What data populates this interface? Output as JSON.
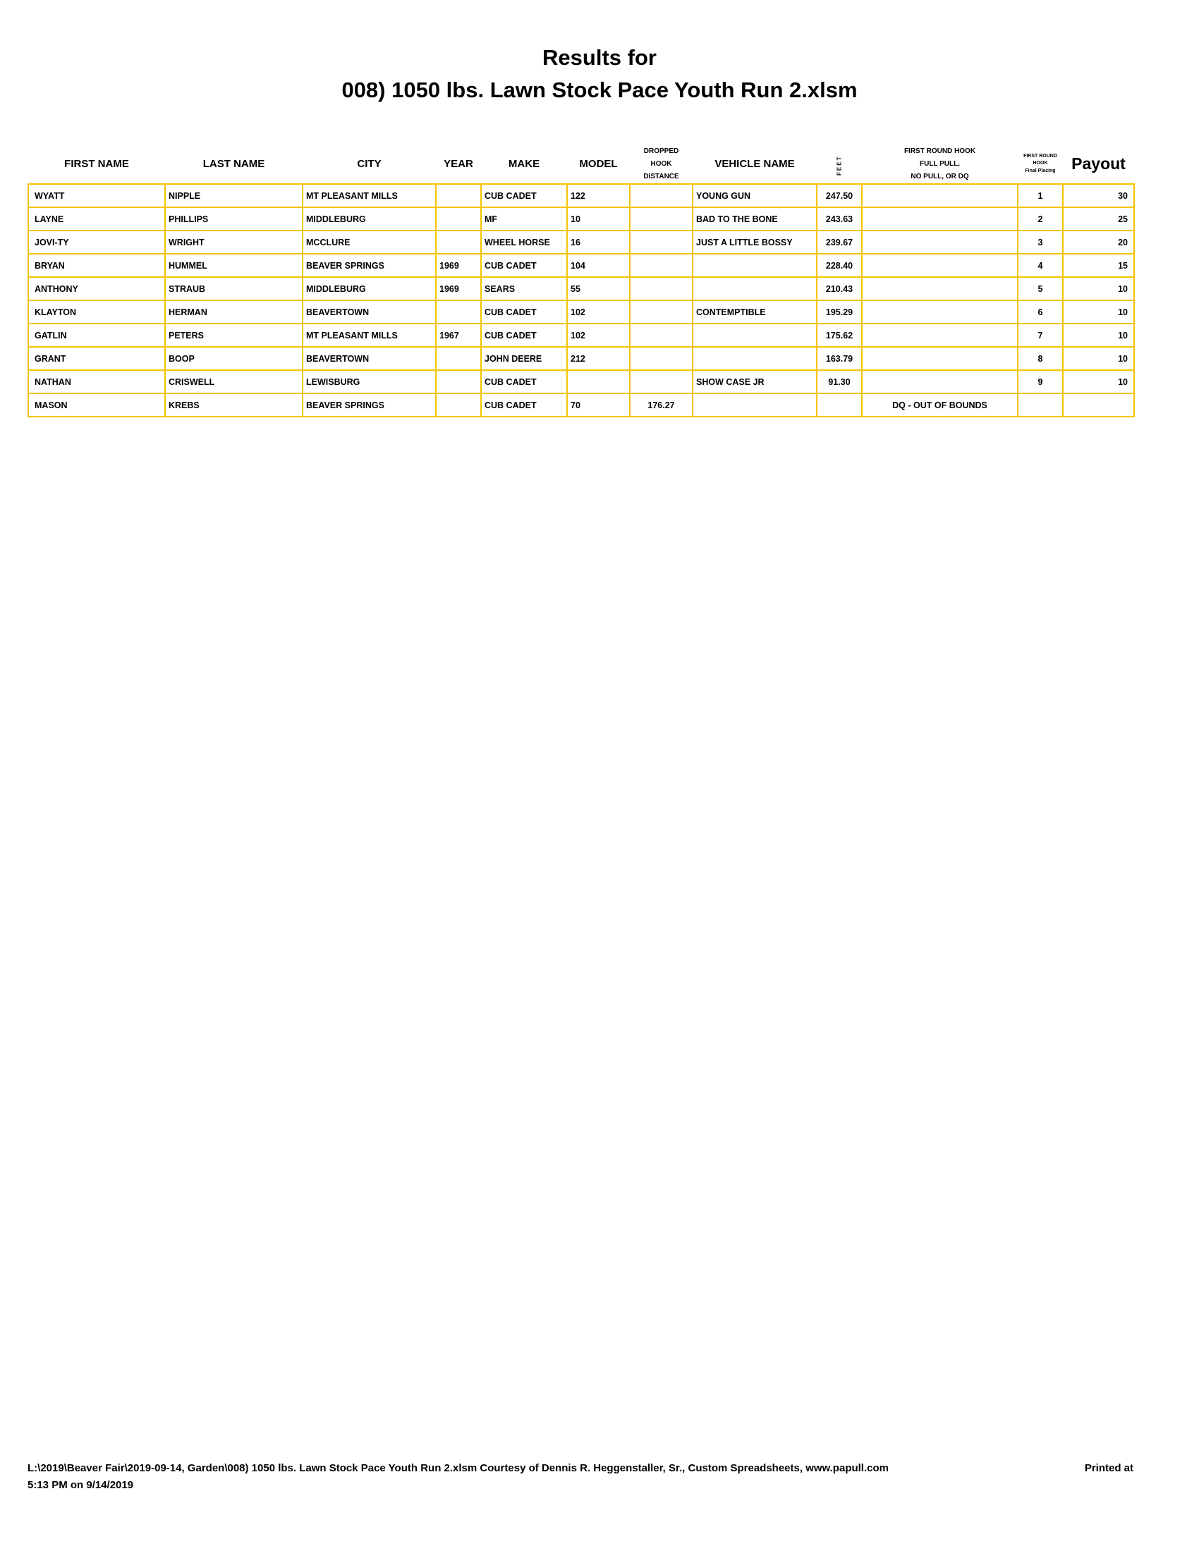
{
  "title_line1": "Results for",
  "title_line2": "008) 1050 lbs. Lawn Stock Pace Youth  Run 2.xlsm",
  "accent_color": "#f5c400",
  "columns": {
    "first_name": "FIRST NAME",
    "last_name": "LAST NAME",
    "city": "CITY",
    "year": "YEAR",
    "make": "MAKE",
    "model": "MODEL",
    "dropped_1": "DROPPED",
    "dropped_2": "HOOK",
    "dropped_3": "DISTANCE",
    "vehicle_name": "VEHICLE NAME",
    "feet": "FEET",
    "hook_1": "FIRST ROUND HOOK",
    "hook_2": "FULL PULL,",
    "hook_3": "NO PULL, OR DQ",
    "placing_1": "FIRST ROUND",
    "placing_2": "HOOK",
    "placing_3": "Final Placing",
    "payout": "Payout"
  },
  "rows": [
    {
      "first": "WYATT",
      "last": "NIPPLE",
      "city": "MT PLEASANT MILLS",
      "year": "",
      "make": "CUB CADET",
      "model": "122",
      "dropped": "",
      "vehicle": "YOUNG GUN",
      "feet": "247.50",
      "hook": "",
      "place": "1",
      "payout": "30"
    },
    {
      "first": "LAYNE",
      "last": "PHILLIPS",
      "city": "MIDDLEBURG",
      "year": "",
      "make": "MF",
      "model": "10",
      "dropped": "",
      "vehicle": "BAD TO THE BONE",
      "feet": "243.63",
      "hook": "",
      "place": "2",
      "payout": "25"
    },
    {
      "first": "JOVI-TY",
      "last": "WRIGHT",
      "city": "MCCLURE",
      "year": "",
      "make": "WHEEL HORSE",
      "model": "16",
      "dropped": "",
      "vehicle": "JUST A LITTLE BOSSY",
      "feet": "239.67",
      "hook": "",
      "place": "3",
      "payout": "20"
    },
    {
      "first": "BRYAN",
      "last": "HUMMEL",
      "city": "BEAVER SPRINGS",
      "year": "1969",
      "make": "CUB CADET",
      "model": "104",
      "dropped": "",
      "vehicle": "",
      "feet": "228.40",
      "hook": "",
      "place": "4",
      "payout": "15"
    },
    {
      "first": "ANTHONY",
      "last": "STRAUB",
      "city": "MIDDLEBURG",
      "year": "1969",
      "make": "SEARS",
      "model": "55",
      "dropped": "",
      "vehicle": "",
      "feet": "210.43",
      "hook": "",
      "place": "5",
      "payout": "10"
    },
    {
      "first": "KLAYTON",
      "last": "HERMAN",
      "city": "BEAVERTOWN",
      "year": "",
      "make": "CUB CADET",
      "model": "102",
      "dropped": "",
      "vehicle": "CONTEMPTIBLE",
      "feet": "195.29",
      "hook": "",
      "place": "6",
      "payout": "10"
    },
    {
      "first": "GATLIN",
      "last": "PETERS",
      "city": "MT PLEASANT MILLS",
      "year": "1967",
      "make": "CUB CADET",
      "model": "102",
      "dropped": "",
      "vehicle": "",
      "feet": "175.62",
      "hook": "",
      "place": "7",
      "payout": "10"
    },
    {
      "first": "GRANT",
      "last": "BOOP",
      "city": "BEAVERTOWN",
      "year": "",
      "make": "JOHN DEERE",
      "model": "212",
      "dropped": "",
      "vehicle": "",
      "feet": "163.79",
      "hook": "",
      "place": "8",
      "payout": "10"
    },
    {
      "first": "NATHAN",
      "last": "CRISWELL",
      "city": "LEWISBURG",
      "year": "",
      "make": "CUB CADET",
      "model": "",
      "dropped": "",
      "vehicle": "SHOW CASE JR",
      "feet": "91.30",
      "hook": "",
      "place": "9",
      "payout": "10"
    },
    {
      "first": "MASON",
      "last": "KREBS",
      "city": "BEAVER SPRINGS",
      "year": "",
      "make": "CUB CADET",
      "model": "70",
      "dropped": "176.27",
      "vehicle": "",
      "feet": "",
      "hook": "DQ - OUT OF BOUNDS",
      "place": "",
      "payout": ""
    }
  ],
  "footer": {
    "path": "L:\\2019\\Beaver Fair\\2019-09-14, Garden\\008) 1050 lbs. Lawn Stock Pace Youth  Run 2.xlsm  Courtesy of Dennis R. Heggenstaller, Sr., Custom Spreadsheets, www.papull.com",
    "printed_at": "Printed at",
    "time": "5:13 PM on 9/14/2019"
  }
}
